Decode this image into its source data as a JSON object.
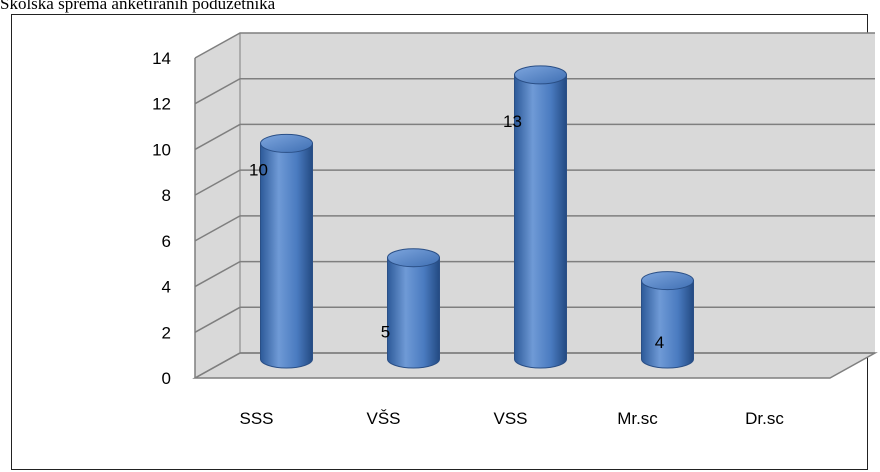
{
  "caption": "Školska sprema anketiranih podužetnika",
  "chart_data": {
    "type": "bar",
    "style": "3d-cylinder",
    "categories": [
      "SSS",
      "VŠS",
      "VSS",
      "Mr.sc",
      "Dr.sc"
    ],
    "values": [
      10,
      5,
      13,
      4,
      0
    ],
    "data_labels": [
      "10",
      "5",
      "13",
      "4",
      null
    ],
    "ylim": [
      0,
      14
    ],
    "yticks": [
      0,
      2,
      4,
      6,
      8,
      10,
      12,
      14
    ],
    "grid": true,
    "legend": "none",
    "colors": {
      "bar_light": "#6f9ad6",
      "bar_mid": "#4a7bc0",
      "bar_dark": "#234a82",
      "wall": "#d9d9d9",
      "grid": "#7f7f7f"
    }
  }
}
